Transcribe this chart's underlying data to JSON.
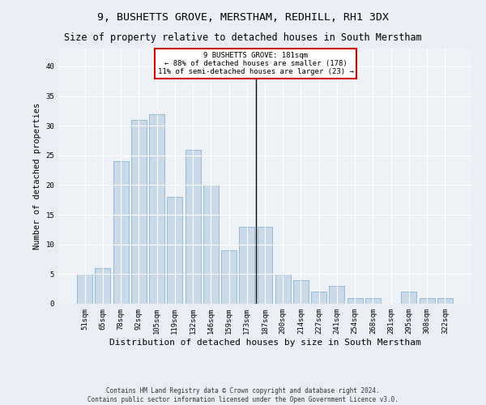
{
  "title1": "9, BUSHETTS GROVE, MERSTHAM, REDHILL, RH1 3DX",
  "title2": "Size of property relative to detached houses in South Merstham",
  "xlabel": "Distribution of detached houses by size in South Merstham",
  "ylabel": "Number of detached properties",
  "footer1": "Contains HM Land Registry data © Crown copyright and database right 2024.",
  "footer2": "Contains public sector information licensed under the Open Government Licence v3.0.",
  "bar_labels": [
    "51sqm",
    "65sqm",
    "78sqm",
    "92sqm",
    "105sqm",
    "119sqm",
    "132sqm",
    "146sqm",
    "159sqm",
    "173sqm",
    "187sqm",
    "200sqm",
    "214sqm",
    "227sqm",
    "241sqm",
    "254sqm",
    "268sqm",
    "281sqm",
    "295sqm",
    "308sqm",
    "322sqm"
  ],
  "bar_values": [
    5,
    6,
    24,
    31,
    32,
    18,
    26,
    20,
    9,
    13,
    13,
    5,
    4,
    2,
    3,
    1,
    1,
    0,
    2,
    1,
    1
  ],
  "bar_color": "#c9d9e8",
  "bar_edgecolor": "#7aaac8",
  "vline_x_index": 9.5,
  "annotation_title": "9 BUSHETTS GROVE: 181sqm",
  "annotation_line1": "← 88% of detached houses are smaller (178)",
  "annotation_line2": "11% of semi-detached houses are larger (23) →",
  "annotation_box_color": "#ffffff",
  "annotation_box_edgecolor": "#cc0000",
  "vline_color": "#000000",
  "ylim": [
    0,
    43
  ],
  "yticks": [
    0,
    5,
    10,
    15,
    20,
    25,
    30,
    35,
    40
  ],
  "bg_color": "#e8eef4",
  "plot_bg_color": "#eef2f7",
  "grid_color": "#ffffff",
  "title_fontsize": 9.5,
  "subtitle_fontsize": 8.5,
  "tick_fontsize": 6.5,
  "ylabel_fontsize": 7.5,
  "xlabel_fontsize": 8,
  "annot_fontsize": 6.5,
  "footer_fontsize": 5.5
}
